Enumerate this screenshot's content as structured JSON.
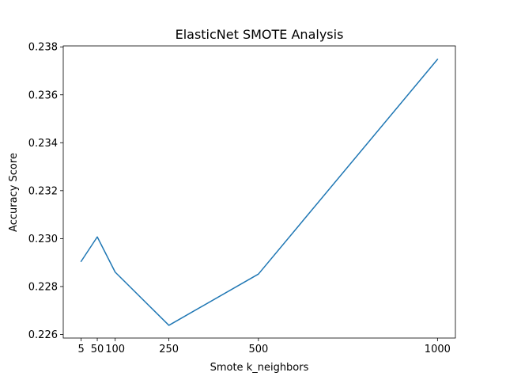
{
  "chart_data": {
    "type": "line",
    "title": "ElasticNet SMOTE Analysis",
    "xlabel": "Smote k_neighbors",
    "ylabel": "Accuracy Score",
    "x": [
      5,
      50,
      100,
      250,
      500,
      1000
    ],
    "series": [
      {
        "values": [
          0.22905,
          0.23007,
          0.2286,
          0.22638,
          0.22852,
          0.23748
        ],
        "color": "#1f77b4"
      }
    ],
    "xticks": [
      5,
      50,
      100,
      250,
      500,
      1000
    ],
    "xtick_labels": [
      "5",
      "50",
      "100",
      "250",
      "500",
      "1000"
    ],
    "yticks": [
      0.226,
      0.228,
      0.23,
      0.232,
      0.234,
      0.236,
      0.238
    ],
    "ytick_labels": [
      "0.226",
      "0.228",
      "0.230",
      "0.232",
      "0.234",
      "0.236",
      "0.238"
    ],
    "xlim": [
      -45,
      1050
    ],
    "ylim": [
      0.22585,
      0.23804
    ],
    "grid": false,
    "legend": "none"
  }
}
